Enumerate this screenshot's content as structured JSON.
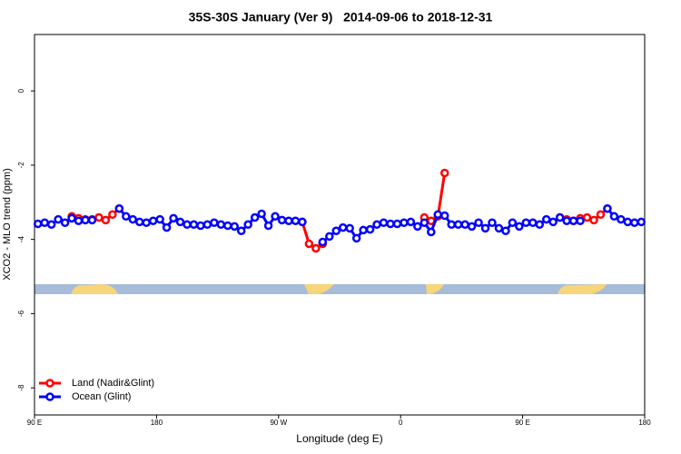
{
  "chart_data": {
    "type": "line",
    "title": "35S-30S January (Ver 9)   2014-09-06 to 2018-12-31",
    "xlabel": "Longitude (deg E)",
    "ylabel": "XCO2 - MLO trend (ppm)",
    "xlim": [
      90,
      540
    ],
    "ylim": [
      -8.73,
      1.52
    ],
    "xticks": [
      {
        "value": 90,
        "label": "90 E"
      },
      180,
      {
        "value": 270,
        "label": "90 W"
      },
      {
        "value": 360,
        "label": "0"
      },
      {
        "value": 450,
        "label": "90 E"
      },
      {
        "value": 540,
        "label": "180"
      }
    ],
    "yticks": [
      0,
      -2,
      -4,
      -6,
      -8
    ],
    "legend": "bottom-left",
    "x": [
      92.5,
      97.5,
      102.5,
      107.5,
      112.5,
      117.5,
      122.5,
      127.5,
      132.5,
      137.5,
      142.5,
      147.5,
      152.5,
      157.5,
      162.5,
      167.5,
      172.5,
      177.5,
      182.5,
      187.5,
      192.5,
      197.5,
      202.5,
      207.5,
      212.5,
      217.5,
      222.5,
      227.5,
      232.5,
      237.5,
      242.5,
      247.5,
      252.5,
      257.5,
      262.5,
      267.5,
      272.5,
      277.5,
      282.5,
      287.5,
      292.5,
      297.5,
      302.5,
      307.5,
      312.5,
      317.5,
      322.5,
      327.5,
      332.5,
      337.5,
      342.5,
      347.5,
      352.5,
      357.5,
      362.5,
      367.5,
      372.5,
      377.5,
      382.5,
      387.5,
      392.5,
      397.5,
      402.5,
      407.5,
      412.5,
      417.5,
      422.5,
      427.5,
      432.5,
      437.5,
      442.5,
      447.5,
      452.5,
      457.5,
      462.5,
      467.5,
      472.5,
      477.5,
      482.5,
      487.5,
      492.5,
      497.5,
      502.5,
      507.5,
      512.5,
      517.5,
      522.5,
      527.5,
      532.5,
      537.5
    ],
    "series": [
      {
        "name": "Land (Nadir&Glint)",
        "color": "#ff0000",
        "values": [
          null,
          null,
          null,
          null,
          null,
          -3.38,
          -3.43,
          -3.46,
          -3.46,
          -3.41,
          -3.48,
          -3.33,
          -3.17,
          null,
          null,
          null,
          null,
          null,
          null,
          null,
          null,
          null,
          null,
          null,
          null,
          null,
          null,
          null,
          null,
          null,
          null,
          null,
          null,
          null,
          null,
          null,
          null,
          null,
          null,
          -3.53,
          -4.12,
          -4.24,
          -4.12,
          null,
          null,
          null,
          null,
          null,
          null,
          null,
          null,
          null,
          null,
          null,
          null,
          null,
          null,
          -3.41,
          -3.5,
          -3.38,
          -2.21,
          null,
          null,
          null,
          null,
          null,
          null,
          null,
          null,
          null,
          null,
          null,
          null,
          null,
          null,
          null,
          null,
          -3.41,
          -3.46,
          -3.5,
          -3.43,
          -3.41,
          -3.48,
          -3.33,
          -3.17,
          null,
          null,
          null,
          null,
          null
        ]
      },
      {
        "name": "Ocean (Glint)",
        "color": "#0000ff",
        "values": [
          -3.58,
          -3.55,
          -3.6,
          -3.46,
          -3.55,
          -3.43,
          -3.5,
          -3.48,
          -3.48,
          null,
          null,
          null,
          -3.17,
          -3.38,
          -3.46,
          -3.53,
          -3.55,
          -3.5,
          -3.46,
          -3.68,
          -3.43,
          -3.53,
          -3.6,
          -3.6,
          -3.63,
          -3.6,
          -3.55,
          -3.6,
          -3.63,
          -3.65,
          -3.77,
          -3.6,
          -3.41,
          -3.31,
          -3.63,
          -3.38,
          -3.48,
          -3.5,
          -3.5,
          -3.53,
          null,
          null,
          -4.07,
          -3.92,
          -3.77,
          -3.68,
          -3.7,
          -3.97,
          -3.75,
          -3.73,
          -3.6,
          -3.55,
          -3.58,
          -3.58,
          -3.55,
          -3.53,
          -3.65,
          -3.55,
          -3.8,
          -3.33,
          -3.36,
          -3.6,
          -3.6,
          -3.6,
          -3.65,
          -3.55,
          -3.7,
          -3.55,
          -3.7,
          -3.77,
          -3.55,
          -3.65,
          -3.55,
          -3.55,
          -3.6,
          -3.46,
          -3.53,
          -3.41,
          -3.5,
          -3.5,
          -3.5,
          null,
          null,
          null,
          -3.17,
          -3.38,
          -3.46,
          -3.53,
          -3.55,
          -3.53
        ]
      }
    ]
  }
}
